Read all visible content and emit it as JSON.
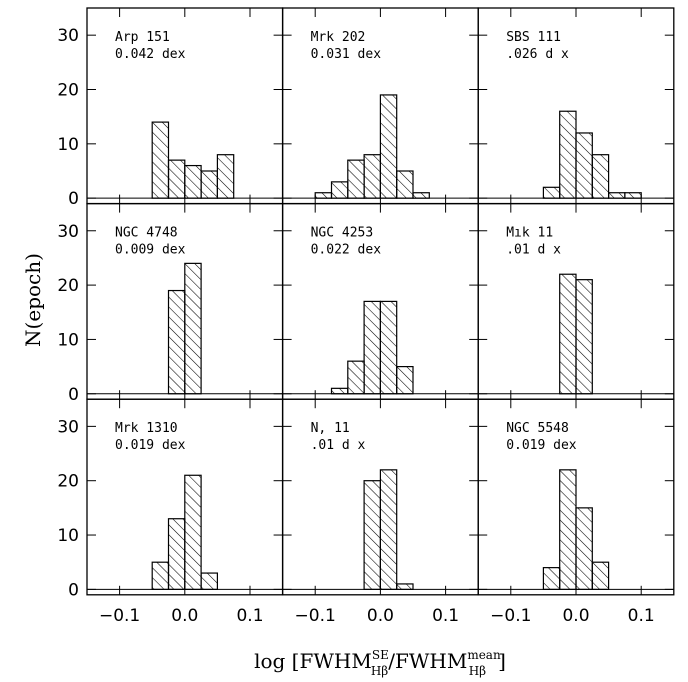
{
  "axes": {
    "ylabel": "N(epoch)",
    "xlabel": {
      "prefix": "log [FWHM",
      "sup1": "SE",
      "sub1": "Hβ",
      "mid": "/FWHM",
      "sup2": "mean",
      "sub2": "Hβ",
      "suffix": "]"
    },
    "xlim": [
      -0.15,
      0.15
    ],
    "ylim": [
      -1,
      35
    ],
    "xticks": [
      {
        "value": -0.1,
        "label": "−0.1"
      },
      {
        "value": 0,
        "label": "0.0"
      },
      0.1
    ],
    "yticks": [
      0,
      10,
      20,
      30
    ]
  },
  "chart_data": [
    {
      "type": "histogram",
      "title": "Arp 151",
      "subtitle": "0.042 dex",
      "bins": [
        -0.05,
        -0.025,
        0,
        0.025,
        0.05,
        0.075
      ],
      "values": [
        14,
        7,
        6,
        5,
        8
      ],
      "color": "#000000"
    },
    {
      "type": "histogram",
      "title": "Mrk 202",
      "subtitle": "0.031 dex",
      "bins": [
        -0.1,
        -0.075,
        -0.05,
        -0.025,
        0,
        0.025,
        0.05,
        0.075
      ],
      "values": [
        1,
        3,
        7,
        8,
        19,
        5,
        1
      ],
      "color": "#000000"
    },
    {
      "type": "histogram",
      "title": "SBS 111",
      "subtitle": ".026 d x",
      "bins": [
        -0.05,
        -0.025,
        0,
        0.025,
        0.05,
        0.075,
        0.1
      ],
      "values": [
        2,
        16,
        12,
        8,
        1,
        1
      ],
      "color": "#000000"
    },
    {
      "type": "histogram",
      "title": "NGC 4748",
      "subtitle": "0.009 dex",
      "bins": [
        -0.025,
        0,
        0.025
      ],
      "values": [
        19,
        24
      ],
      "color": "#000000"
    },
    {
      "type": "histogram",
      "title": "NGC 4253",
      "subtitle": "0.022 dex",
      "bins": [
        -0.075,
        -0.05,
        -0.025,
        0,
        0.025,
        0.05
      ],
      "values": [
        1,
        6,
        17,
        17,
        5
      ],
      "color": "#000000"
    },
    {
      "type": "histogram",
      "title": "Mık 11",
      "subtitle": ".01  d x",
      "bins": [
        -0.025,
        0,
        0.025
      ],
      "values": [
        22,
        21
      ],
      "color": "#000000"
    },
    {
      "type": "histogram",
      "title": "Mrk 1310",
      "subtitle": "0.019 dex",
      "bins": [
        -0.05,
        -0.025,
        0,
        0.025,
        0.05
      ],
      "values": [
        5,
        13,
        21,
        3
      ],
      "color": "#000000"
    },
    {
      "type": "histogram",
      "title": "N,   11",
      "subtitle": ".01  d x",
      "bins": [
        -0.025,
        0,
        0.025,
        0.05
      ],
      "values": [
        20,
        22,
        1
      ],
      "color": "#000000"
    },
    {
      "type": "histogram",
      "title": "NGC 5548",
      "subtitle": "0.019 dex",
      "bins": [
        -0.05,
        -0.025,
        0,
        0.025,
        0.05
      ],
      "values": [
        4,
        22,
        15,
        5
      ],
      "color": "#000000"
    }
  ]
}
